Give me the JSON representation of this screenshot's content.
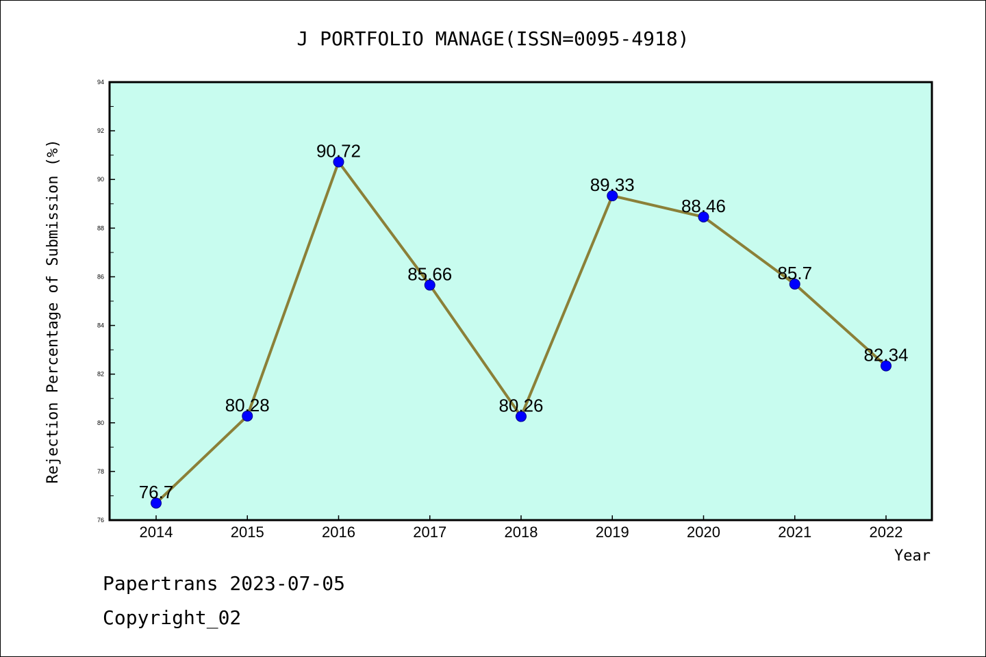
{
  "chart_data": {
    "type": "line",
    "title": "J PORTFOLIO MANAGE(ISSN=0095-4918)",
    "xlabel": "Year",
    "ylabel": "Rejection Percentage of Submission (%)",
    "categories": [
      "2014",
      "2015",
      "2016",
      "2017",
      "2018",
      "2019",
      "2020",
      "2021",
      "2022"
    ],
    "values": [
      76.7,
      80.28,
      90.72,
      85.66,
      80.26,
      89.33,
      88.46,
      85.7,
      82.34
    ],
    "data_labels": [
      "76.7",
      "80.28",
      "90.72",
      "85.66",
      "80.26",
      "89.33",
      "88.46",
      "85.7",
      "82.34"
    ],
    "ylim": [
      76,
      94
    ],
    "yticks": [
      76,
      78,
      80,
      82,
      84,
      86,
      88,
      90,
      92,
      94
    ],
    "grid": false,
    "colors": {
      "plot_background": "#c8fcef",
      "line": "#8b8038",
      "marker": "#0000ff"
    }
  },
  "footer": {
    "line1": "Papertrans 2023-07-05",
    "line2": "Copyright_02"
  }
}
